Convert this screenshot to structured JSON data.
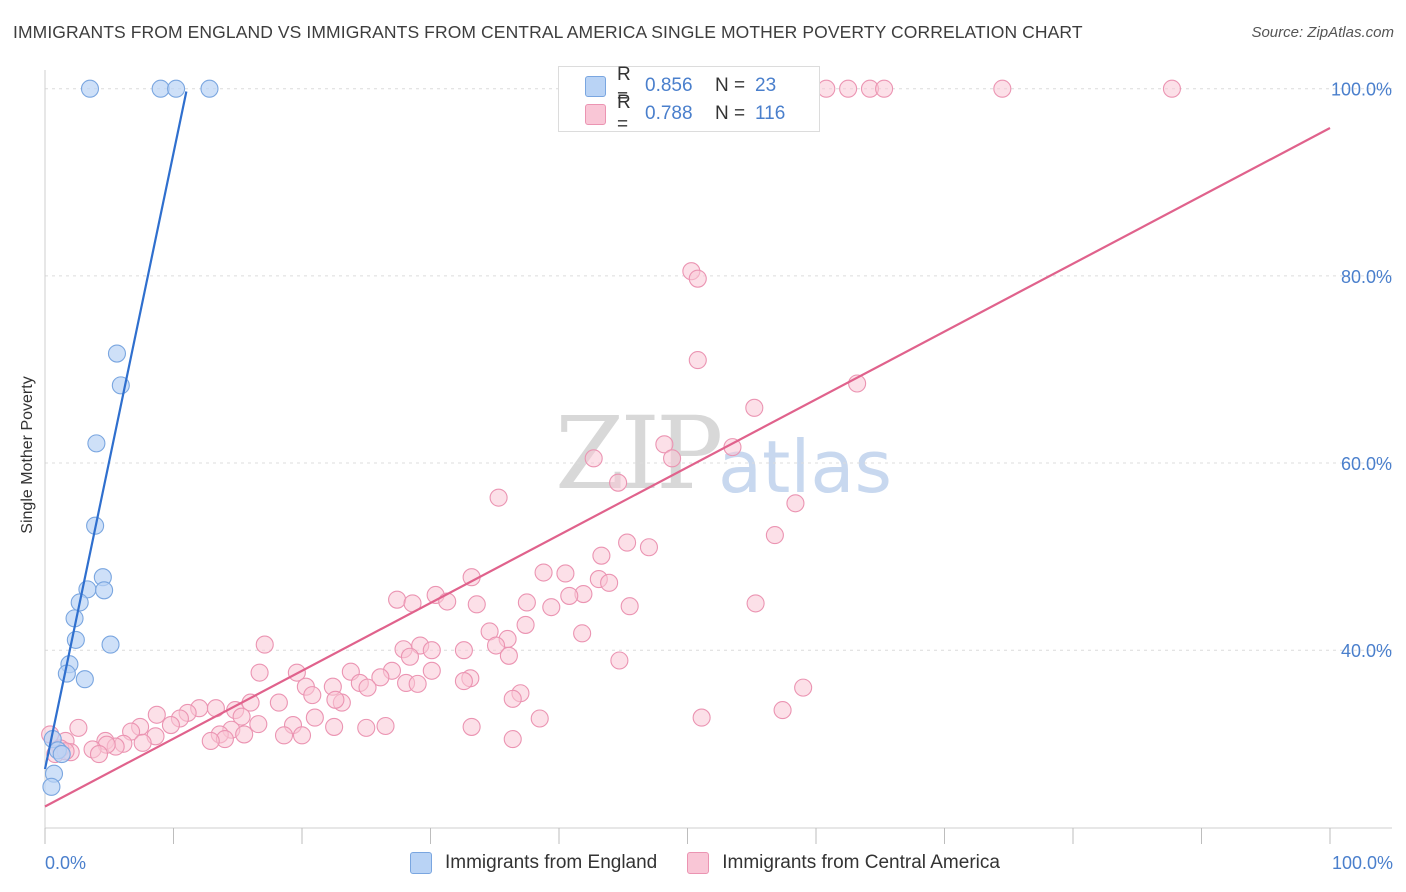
{
  "title": "IMMIGRANTS FROM ENGLAND VS IMMIGRANTS FROM CENTRAL AMERICA SINGLE MOTHER POVERTY CORRELATION CHART",
  "source": "Source: ZipAtlas.com",
  "watermark": {
    "zip": "ZIP",
    "atlas": "atlas"
  },
  "colors": {
    "england_fill": "#b9d3f5",
    "england_stroke": "#7aa6e0",
    "england_line": "#2f6fce",
    "ca_fill": "#f9c6d6",
    "ca_stroke": "#eb94b2",
    "ca_line": "#e0628c",
    "tick_text": "#4a7fcc",
    "grid": "#dcdcdc"
  },
  "legend": {
    "england": {
      "r_label": "R =",
      "r_value": "0.856",
      "n_label": "N =",
      "n_value": "23"
    },
    "central_america": {
      "r_label": "R =",
      "r_value": "0.788",
      "n_label": "N =",
      "n_value": "116"
    }
  },
  "bottom_legend": {
    "england": "Immigrants from England",
    "central_america": "Immigrants from Central America"
  },
  "chart_data": {
    "type": "scatter",
    "title": "IMMIGRANTS FROM ENGLAND VS IMMIGRANTS FROM CENTRAL AMERICA SINGLE MOTHER POVERTY CORRELATION CHART",
    "xlabel": "",
    "ylabel": "Single Mother Poverty",
    "xlim": [
      0,
      100
    ],
    "ylim": [
      21,
      102
    ],
    "x_tick_labels": [
      "0.0%",
      "100.0%"
    ],
    "y_ticks": [
      40,
      60,
      80,
      100
    ],
    "y_tick_labels": [
      "40.0%",
      "60.0%",
      "80.0%",
      "100.0%"
    ],
    "grid": true,
    "series": [
      {
        "name": "Immigrants from England",
        "trend": {
          "x": [
            0,
            11
          ],
          "y": [
            27.3,
            99.7
          ]
        },
        "points": [
          [
            3.5,
            100
          ],
          [
            9,
            100
          ],
          [
            10.2,
            100
          ],
          [
            12.8,
            100
          ],
          [
            5.6,
            71.7
          ],
          [
            5.9,
            68.3
          ],
          [
            4,
            62.1
          ],
          [
            3.9,
            53.3
          ],
          [
            4.5,
            47.8
          ],
          [
            3.3,
            46.5
          ],
          [
            4.6,
            46.4
          ],
          [
            2.7,
            45.1
          ],
          [
            2.3,
            43.4
          ],
          [
            2.4,
            41.1
          ],
          [
            5.1,
            40.6
          ],
          [
            1.9,
            38.5
          ],
          [
            1.7,
            37.5
          ],
          [
            3.1,
            36.9
          ],
          [
            0.6,
            30.5
          ],
          [
            1,
            29.3
          ],
          [
            1.3,
            28.9
          ],
          [
            0.7,
            26.8
          ],
          [
            0.5,
            25.4
          ]
        ]
      },
      {
        "name": "Immigrants from Central America",
        "trend": {
          "x": [
            0,
            100
          ],
          "y": [
            23.3,
            95.8
          ]
        },
        "points": [
          [
            60.8,
            100
          ],
          [
            62.5,
            100
          ],
          [
            64.2,
            100
          ],
          [
            65.3,
            100
          ],
          [
            74.5,
            100
          ],
          [
            87.7,
            100
          ],
          [
            50.3,
            80.5
          ],
          [
            50.8,
            79.7
          ],
          [
            50.8,
            71.0
          ],
          [
            55.2,
            65.9
          ],
          [
            63.2,
            68.5
          ],
          [
            48.2,
            62.0
          ],
          [
            53.5,
            61.7
          ],
          [
            48.8,
            60.5
          ],
          [
            42.7,
            60.5
          ],
          [
            44.6,
            57.9
          ],
          [
            35.3,
            56.3
          ],
          [
            58.4,
            55.7
          ],
          [
            56.8,
            52.3
          ],
          [
            47,
            51.0
          ],
          [
            45.3,
            51.5
          ],
          [
            43.3,
            50.1
          ],
          [
            33.2,
            47.8
          ],
          [
            40.5,
            48.2
          ],
          [
            38.8,
            48.3
          ],
          [
            43.1,
            47.6
          ],
          [
            27.4,
            45.4
          ],
          [
            43.9,
            47.2
          ],
          [
            41.9,
            46.0
          ],
          [
            40.8,
            45.8
          ],
          [
            30.4,
            45.9
          ],
          [
            28.6,
            45.0
          ],
          [
            33.6,
            44.9
          ],
          [
            31.3,
            45.2
          ],
          [
            37.5,
            45.1
          ],
          [
            39.4,
            44.6
          ],
          [
            45.5,
            44.7
          ],
          [
            55.3,
            45.0
          ],
          [
            34.6,
            42.0
          ],
          [
            37.4,
            42.7
          ],
          [
            41.8,
            41.8
          ],
          [
            36.0,
            41.2
          ],
          [
            35.1,
            40.5
          ],
          [
            29.2,
            40.5
          ],
          [
            30.1,
            40.0
          ],
          [
            27.9,
            40.1
          ],
          [
            32.6,
            40.0
          ],
          [
            17.1,
            40.6
          ],
          [
            36.1,
            39.4
          ],
          [
            28.4,
            39.3
          ],
          [
            44.7,
            38.9
          ],
          [
            30.1,
            37.8
          ],
          [
            33.1,
            37.0
          ],
          [
            27.0,
            37.8
          ],
          [
            23.8,
            37.7
          ],
          [
            19.6,
            37.6
          ],
          [
            16.7,
            37.6
          ],
          [
            26.1,
            37.1
          ],
          [
            32.6,
            36.7
          ],
          [
            24.5,
            36.5
          ],
          [
            28.1,
            36.5
          ],
          [
            29.0,
            36.4
          ],
          [
            20.3,
            36.1
          ],
          [
            22.4,
            36.1
          ],
          [
            25.1,
            36.0
          ],
          [
            20.8,
            35.2
          ],
          [
            37.0,
            35.4
          ],
          [
            59.0,
            36.0
          ],
          [
            36.4,
            34.8
          ],
          [
            23.1,
            34.4
          ],
          [
            22.6,
            34.7
          ],
          [
            18.2,
            34.4
          ],
          [
            16.0,
            34.4
          ],
          [
            12.0,
            33.8
          ],
          [
            13.3,
            33.8
          ],
          [
            8.7,
            33.1
          ],
          [
            11.1,
            33.3
          ],
          [
            10.5,
            32.7
          ],
          [
            14.8,
            33.6
          ],
          [
            15.3,
            32.9
          ],
          [
            21.0,
            32.8
          ],
          [
            38.5,
            32.7
          ],
          [
            51.1,
            32.8
          ],
          [
            57.4,
            33.6
          ],
          [
            9.8,
            32.0
          ],
          [
            7.4,
            31.8
          ],
          [
            14.5,
            31.5
          ],
          [
            16.6,
            32.1
          ],
          [
            19.3,
            32.0
          ],
          [
            22.5,
            31.8
          ],
          [
            25.0,
            31.7
          ],
          [
            26.5,
            31.9
          ],
          [
            33.2,
            31.8
          ],
          [
            2.6,
            31.7
          ],
          [
            6.7,
            31.3
          ],
          [
            8.6,
            30.8
          ],
          [
            13.6,
            31.0
          ],
          [
            15.5,
            31.0
          ],
          [
            20.0,
            30.9
          ],
          [
            14.0,
            30.5
          ],
          [
            12.9,
            30.3
          ],
          [
            18.6,
            30.9
          ],
          [
            36.4,
            30.5
          ],
          [
            4.7,
            30.3
          ],
          [
            6.1,
            30.0
          ],
          [
            7.6,
            30.1
          ],
          [
            5.5,
            29.7
          ],
          [
            4.8,
            29.9
          ],
          [
            1.6,
            30.3
          ],
          [
            3.7,
            29.4
          ],
          [
            2.0,
            29.1
          ],
          [
            4.2,
            28.9
          ],
          [
            0.4,
            31.0
          ],
          [
            1.2,
            29.5
          ],
          [
            0.8,
            28.9
          ],
          [
            1.6,
            29.2
          ]
        ]
      }
    ]
  }
}
